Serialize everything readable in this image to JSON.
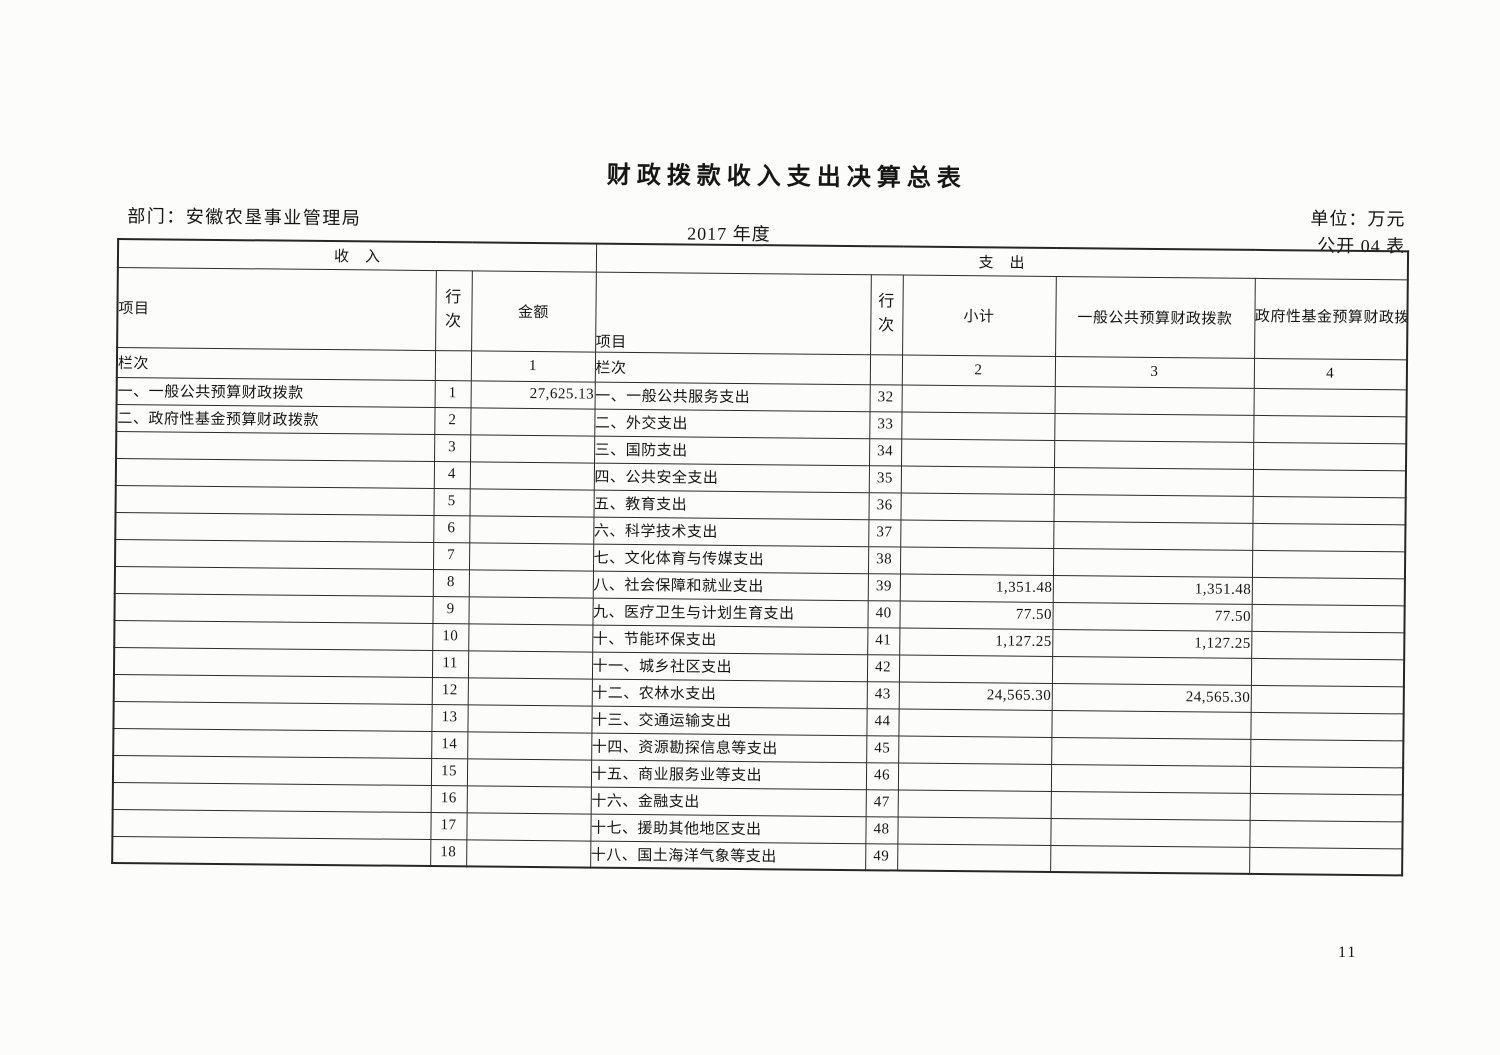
{
  "page": {
    "title": "财政拨款收入支出决算总表",
    "department": "部门：安徽农垦事业管理局",
    "year": "2017 年度",
    "unit": "单位：万元",
    "table_no": "公开 04 表",
    "page_number": "11"
  },
  "table": {
    "income_header": "收　入",
    "expense_header": "支　出",
    "columns": {
      "item": "项目",
      "line_no": "行次",
      "amount": "金额",
      "subtotal": "小计",
      "general_budget": "一般公共预算财政拨款",
      "gov_fund_budget": "政府性基金预算财政拨款"
    },
    "lanci": "栏次",
    "col_indexes": [
      "1",
      "2",
      "3",
      "4"
    ],
    "income_rows": [
      {
        "item": "一、一般公共预算财政拨款",
        "line": "1",
        "amount": "27,625.13"
      },
      {
        "item": "二、政府性基金预算财政拨款",
        "line": "2",
        "amount": ""
      },
      {
        "item": "",
        "line": "3",
        "amount": ""
      },
      {
        "item": "",
        "line": "4",
        "amount": ""
      },
      {
        "item": "",
        "line": "5",
        "amount": ""
      },
      {
        "item": "",
        "line": "6",
        "amount": ""
      },
      {
        "item": "",
        "line": "7",
        "amount": ""
      },
      {
        "item": "",
        "line": "8",
        "amount": ""
      },
      {
        "item": "",
        "line": "9",
        "amount": ""
      },
      {
        "item": "",
        "line": "10",
        "amount": ""
      },
      {
        "item": "",
        "line": "11",
        "amount": ""
      },
      {
        "item": "",
        "line": "12",
        "amount": ""
      },
      {
        "item": "",
        "line": "13",
        "amount": ""
      },
      {
        "item": "",
        "line": "14",
        "amount": ""
      },
      {
        "item": "",
        "line": "15",
        "amount": ""
      },
      {
        "item": "",
        "line": "16",
        "amount": ""
      },
      {
        "item": "",
        "line": "17",
        "amount": ""
      },
      {
        "item": "",
        "line": "18",
        "amount": ""
      }
    ],
    "expense_rows": [
      {
        "item": "一、一般公共服务支出",
        "line": "32",
        "subtotal": "",
        "general": "",
        "gov_fund": ""
      },
      {
        "item": "二、外交支出",
        "line": "33",
        "subtotal": "",
        "general": "",
        "gov_fund": ""
      },
      {
        "item": "三、国防支出",
        "line": "34",
        "subtotal": "",
        "general": "",
        "gov_fund": ""
      },
      {
        "item": "四、公共安全支出",
        "line": "35",
        "subtotal": "",
        "general": "",
        "gov_fund": ""
      },
      {
        "item": "五、教育支出",
        "line": "36",
        "subtotal": "",
        "general": "",
        "gov_fund": ""
      },
      {
        "item": "六、科学技术支出",
        "line": "37",
        "subtotal": "",
        "general": "",
        "gov_fund": ""
      },
      {
        "item": "七、文化体育与传媒支出",
        "line": "38",
        "subtotal": "",
        "general": "",
        "gov_fund": ""
      },
      {
        "item": "八、社会保障和就业支出",
        "line": "39",
        "subtotal": "1,351.48",
        "general": "1,351.48",
        "gov_fund": ""
      },
      {
        "item": "九、医疗卫生与计划生育支出",
        "line": "40",
        "subtotal": "77.50",
        "general": "77.50",
        "gov_fund": ""
      },
      {
        "item": "十、节能环保支出",
        "line": "41",
        "subtotal": "1,127.25",
        "general": "1,127.25",
        "gov_fund": ""
      },
      {
        "item": "十一、城乡社区支出",
        "line": "42",
        "subtotal": "",
        "general": "",
        "gov_fund": ""
      },
      {
        "item": "十二、农林水支出",
        "line": "43",
        "subtotal": "24,565.30",
        "general": "24,565.30",
        "gov_fund": ""
      },
      {
        "item": "十三、交通运输支出",
        "line": "44",
        "subtotal": "",
        "general": "",
        "gov_fund": ""
      },
      {
        "item": "十四、资源勘探信息等支出",
        "line": "45",
        "subtotal": "",
        "general": "",
        "gov_fund": ""
      },
      {
        "item": "十五、商业服务业等支出",
        "line": "46",
        "subtotal": "",
        "general": "",
        "gov_fund": ""
      },
      {
        "item": "十六、金融支出",
        "line": "47",
        "subtotal": "",
        "general": "",
        "gov_fund": ""
      },
      {
        "item": "十七、援助其他地区支出",
        "line": "48",
        "subtotal": "",
        "general": "",
        "gov_fund": ""
      },
      {
        "item": "十八、国土海洋气象等支出",
        "line": "49",
        "subtotal": "",
        "general": "",
        "gov_fund": ""
      }
    ]
  }
}
